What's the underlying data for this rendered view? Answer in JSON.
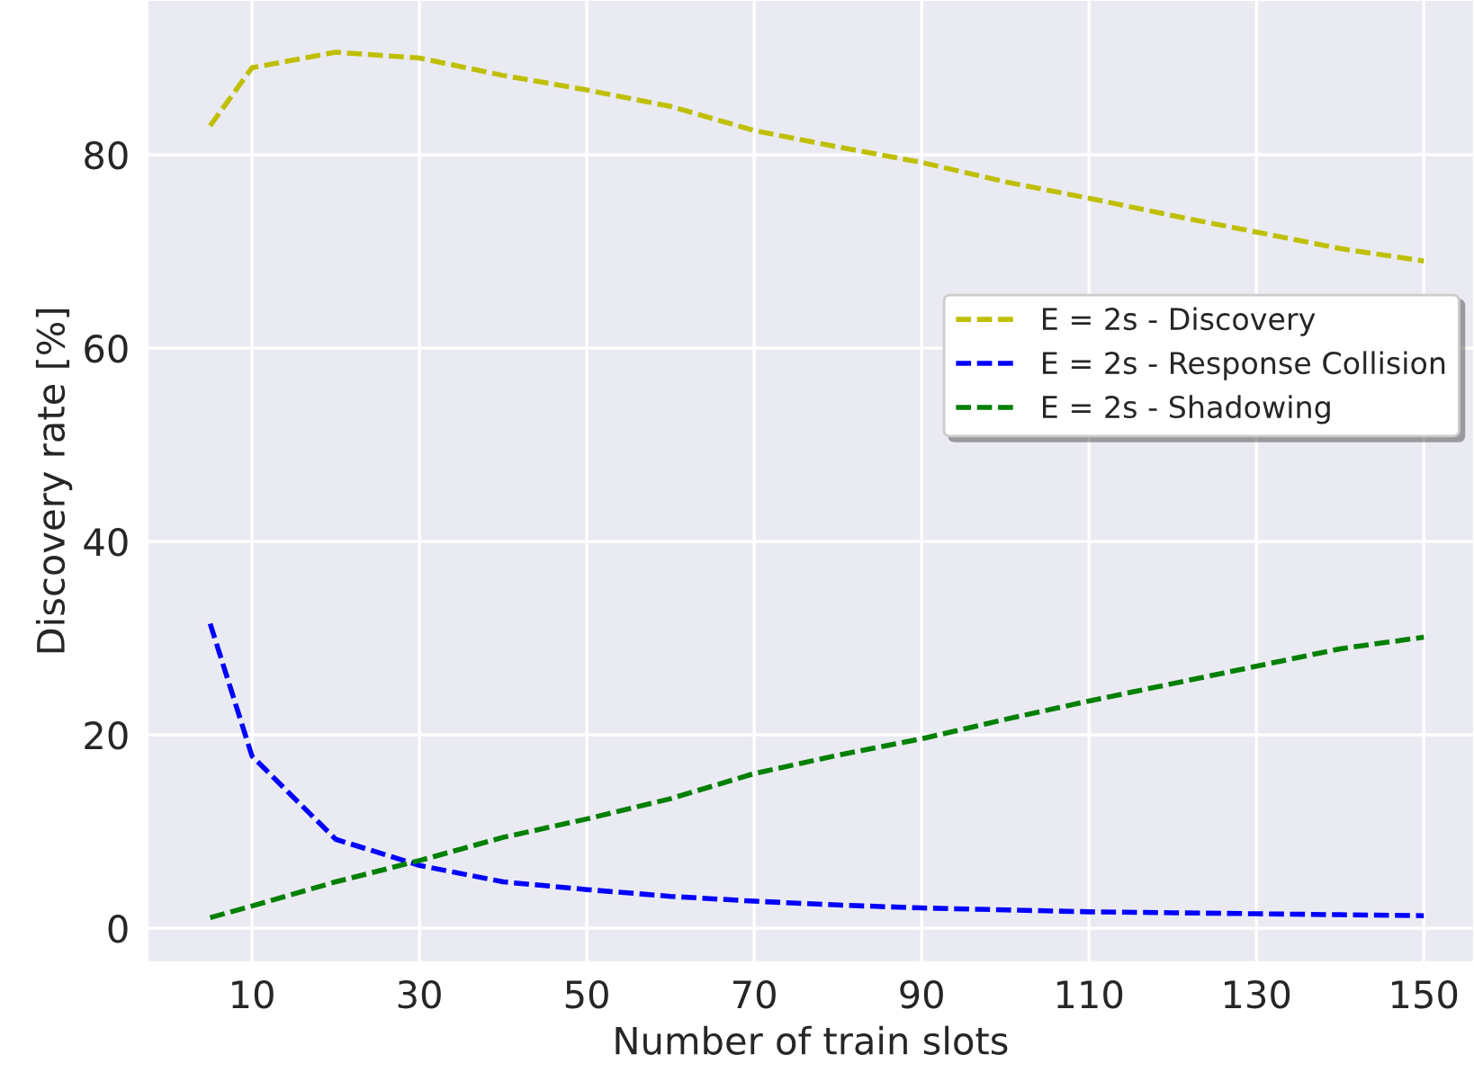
{
  "chart_data": {
    "type": "line",
    "xlabel": "Number of train slots",
    "ylabel": "Discovery rate [%]",
    "x": [
      5,
      10,
      20,
      30,
      40,
      50,
      60,
      70,
      80,
      90,
      100,
      110,
      120,
      130,
      140,
      150
    ],
    "series": [
      {
        "name": "E = 2s - Discovery",
        "color": "#bfbf00",
        "values": [
          83,
          89,
          90.6,
          90,
          88.2,
          86.7,
          85,
          82.5,
          80.8,
          79.2,
          77.2,
          75.5,
          73.7,
          72,
          70.3,
          69
        ]
      },
      {
        "name": "E = 2s - Response Collision",
        "color": "#0000ff",
        "values": [
          31.5,
          17.8,
          9.2,
          6.5,
          4.8,
          4.0,
          3.3,
          2.8,
          2.4,
          2.1,
          1.9,
          1.7,
          1.6,
          1.5,
          1.4,
          1.3
        ]
      },
      {
        "name": "E = 2s - Shadowing",
        "color": "#008000",
        "values": [
          1.1,
          2.3,
          4.8,
          7.0,
          9.4,
          11.3,
          13.4,
          16.0,
          17.9,
          19.6,
          21.6,
          23.5,
          25.3,
          27.1,
          28.9,
          30.1
        ]
      }
    ],
    "xlim": [
      -2.5,
      156
    ],
    "ylim": [
      -3.5,
      96
    ],
    "xticks": [
      10,
      30,
      50,
      70,
      90,
      110,
      130,
      150
    ],
    "yticks": [
      0,
      20,
      40,
      60,
      80
    ],
    "grid": true,
    "legend": "right",
    "line_style": "dashed",
    "marker": "none"
  }
}
